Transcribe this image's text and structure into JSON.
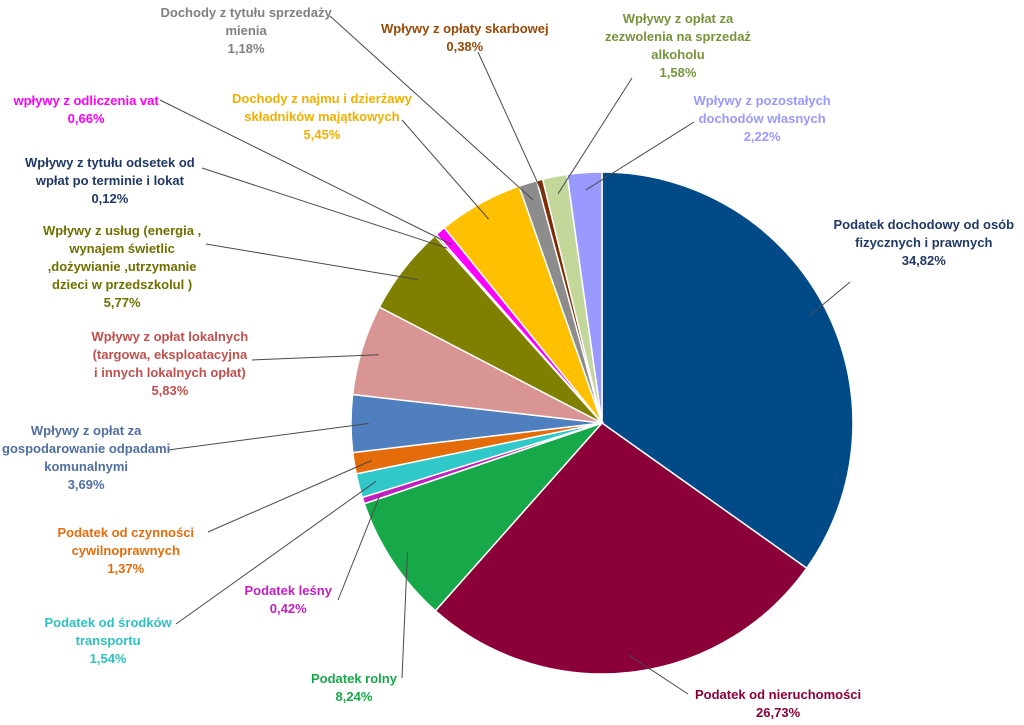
{
  "chart_data": {
    "type": "pie",
    "title": "",
    "slices": [
      {
        "id": "podatek-dochodowy",
        "label_lines": [
          "Podatek dochodowy od osób",
          "fizycznych i prawnych"
        ],
        "value": 34.82,
        "value_text": "34,82%",
        "color": "#004B87",
        "text_color": "#1F3864"
      },
      {
        "id": "podatek-od-nieruchomosci",
        "label_lines": [
          "Podatek od nieruchomości"
        ],
        "value": 26.73,
        "value_text": "26,73%",
        "color": "#8B0038",
        "text_color": "#8B0038"
      },
      {
        "id": "podatek-rolny",
        "label_lines": [
          "Podatek rolny"
        ],
        "value": 8.24,
        "value_text": "8,24%",
        "color": "#17A84A",
        "text_color": "#17A84A"
      },
      {
        "id": "podatek-lesny",
        "label_lines": [
          "Podatek leśny"
        ],
        "value": 0.42,
        "value_text": "0,42%",
        "color": "#C020C0",
        "text_color": "#C020C0"
      },
      {
        "id": "podatek-od-srodkow-transportu",
        "label_lines": [
          "Podatek od środków",
          "transportu"
        ],
        "value": 1.54,
        "value_text": "1,54%",
        "color": "#30C8C8",
        "text_color": "#30C0C0"
      },
      {
        "id": "podatek-od-czynnosci-cywilnoprawnych",
        "label_lines": [
          "Podatek od czynności",
          "cywilnoprawnych"
        ],
        "value": 1.37,
        "value_text": "1,37%",
        "color": "#E46C0A",
        "text_color": "#E46C0A"
      },
      {
        "id": "wplywy-z-oplat-za-gospodarowanie-odpadami",
        "label_lines": [
          "Wpływy z opłat za",
          "gospodarowanie odpadami",
          "komunalnymi"
        ],
        "value": 3.69,
        "value_text": "3,69%",
        "color": "#4F7FBF",
        "text_color": "#4F6F9F"
      },
      {
        "id": "wplywy-z-oplat-lokalnych",
        "label_lines": [
          "Wpływy z opłat lokalnych",
          "(targowa, eksploatacyjna",
          "i  innych lokalnych opłat)"
        ],
        "value": 5.83,
        "value_text": "5,83%",
        "color": "#D99594",
        "text_color": "#C0504D"
      },
      {
        "id": "wplywy-z-uslug",
        "label_lines": [
          "Wpływy z usług (energia ,",
          "wynajem świetlic",
          ",dożywianie ,utrzymanie",
          "dzieci w przedszkolul )"
        ],
        "value": 5.77,
        "value_text": "5,77%",
        "color": "#7F7F00",
        "text_color": "#6F6F00"
      },
      {
        "id": "wplywy-z-tytulu-odsetek",
        "label_lines": [
          "Wpływy  z tytułu  odsetek  od",
          "wpłat po terminie i lokat"
        ],
        "value": 0.12,
        "value_text": "0,12%",
        "color": "#1F4E79",
        "text_color": "#1F3864"
      },
      {
        "id": "wplywy-z-odliczenia-vat",
        "label_lines": [
          "wpływy z odliczenia vat"
        ],
        "value": 0.66,
        "value_text": "0,66%",
        "color": "#FF00FF",
        "text_color": "#FF00FF"
      },
      {
        "id": "dochody-z-najmu",
        "label_lines": [
          "Dochody  z najmu  i dzierżawy",
          "składników majątkowych"
        ],
        "value": 5.45,
        "value_text": "5,45%",
        "color": "#FFC000",
        "text_color": "#F0B000"
      },
      {
        "id": "dochody-ze-sprzedazy-mienia",
        "label_lines": [
          "Dochody  z tytułu  sprzedaży",
          "mienia"
        ],
        "value": 1.18,
        "value_text": "1,18%",
        "color": "#8C8C8C",
        "text_color": "#808080"
      },
      {
        "id": "wplywy-z-oplaty-skarbowej",
        "label_lines": [
          "Wpływy  z  opłaty skarbowej"
        ],
        "value": 0.38,
        "value_text": "0,38%",
        "color": "#7F2C00",
        "text_color": "#984806"
      },
      {
        "id": "wplywy-z-oplat-za-zezwolenia-alkohol",
        "label_lines": [
          "Wpływy  z  opłat  za",
          "zezwolenia  na  sprzedaż",
          "alkoholu"
        ],
        "value": 1.58,
        "value_text": "1,58%",
        "color": "#C4D79B",
        "text_color": "#77933C"
      },
      {
        "id": "wplywy-z-pozostalych-dochodow",
        "label_lines": [
          "Wpływy  z pozostałych",
          "dochodów  własnych"
        ],
        "value": 2.22,
        "value_text": "2,22%",
        "color": "#9999FF",
        "text_color": "#9999FF"
      }
    ]
  }
}
